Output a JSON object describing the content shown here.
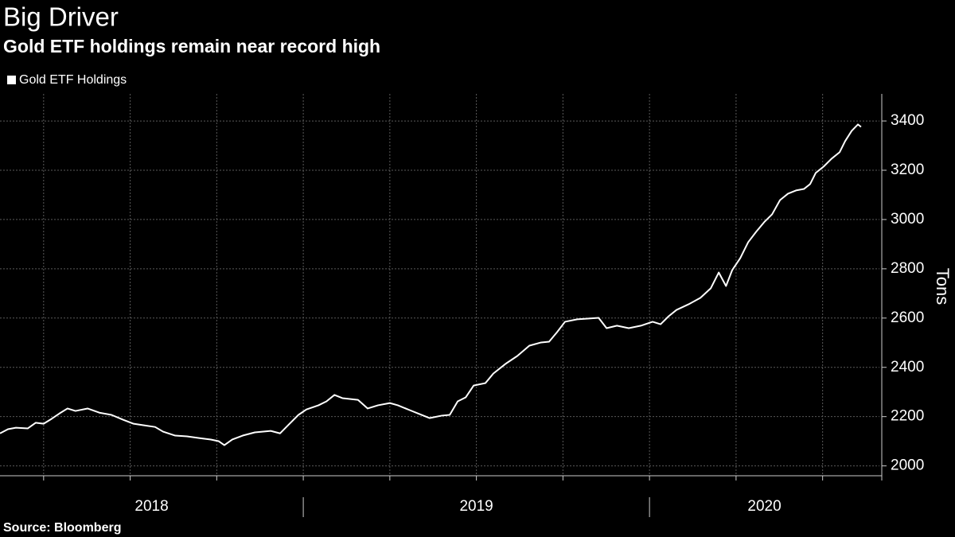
{
  "chart_data": {
    "type": "line",
    "title": "Big Driver",
    "subtitle": "Gold ETF holdings remain near record high",
    "ylabel": "Tons",
    "source": "Source: Bloomberg",
    "xlim": [
      2018.124,
      2020.664
    ],
    "ylim": [
      1960,
      3510
    ],
    "yticks": [
      2000,
      2200,
      2400,
      2600,
      2800,
      3000,
      3200,
      3400
    ],
    "xticks": [
      {
        "value": 2018,
        "label": "2018"
      },
      {
        "value": 2019,
        "label": "2019"
      },
      {
        "value": 2020,
        "label": "2020"
      }
    ],
    "xgrid": [
      2018.25,
      2018.5,
      2018.75,
      2019,
      2019.25,
      2019.5,
      2019.75,
      2020,
      2020.25,
      2020.5
    ],
    "grid": true,
    "legend": "top-left",
    "x": [
      2018.124,
      2018.147,
      2018.17,
      2018.204,
      2018.227,
      2018.25,
      2018.273,
      2018.296,
      2018.319,
      2018.342,
      2018.377,
      2018.411,
      2018.446,
      2018.48,
      2018.51,
      2018.538,
      2018.572,
      2018.595,
      2018.63,
      2018.664,
      2018.699,
      2018.733,
      2018.756,
      2018.772,
      2018.795,
      2018.825,
      2018.86,
      2018.906,
      2018.933,
      2018.956,
      2018.986,
      2019.009,
      2019.044,
      2019.067,
      2019.09,
      2019.113,
      2019.158,
      2019.186,
      2019.216,
      2019.25,
      2019.273,
      2019.308,
      2019.342,
      2019.365,
      2019.4,
      2019.423,
      2019.446,
      2019.469,
      2019.492,
      2019.526,
      2019.549,
      2019.584,
      2019.618,
      2019.653,
      2019.687,
      2019.71,
      2019.733,
      2019.756,
      2019.791,
      2019.825,
      2019.853,
      2019.876,
      2019.906,
      2019.94,
      2019.975,
      2020.009,
      2020.032,
      2020.055,
      2020.078,
      2020.113,
      2020.147,
      2020.177,
      2020.2,
      2020.221,
      2020.239,
      2020.262,
      2020.285,
      2020.308,
      2020.331,
      2020.354,
      2020.377,
      2020.4,
      2020.423,
      2020.446,
      2020.464,
      2020.48,
      2020.503,
      2020.526,
      2020.549,
      2020.565,
      2020.584,
      2020.602,
      2020.611
    ],
    "series": [
      {
        "name": "Gold ETF Holdings",
        "color": "#ffffff",
        "values": [
          2132,
          2149,
          2155,
          2152,
          2175,
          2171,
          2191,
          2213,
          2233,
          2223,
          2233,
          2216,
          2207,
          2187,
          2171,
          2165,
          2158,
          2139,
          2123,
          2120,
          2113,
          2107,
          2100,
          2084,
          2107,
          2123,
          2136,
          2142,
          2132,
          2165,
          2207,
          2229,
          2246,
          2262,
          2288,
          2275,
          2268,
          2233,
          2246,
          2255,
          2246,
          2226,
          2207,
          2194,
          2204,
          2207,
          2262,
          2278,
          2326,
          2336,
          2375,
          2414,
          2446,
          2488,
          2501,
          2504,
          2543,
          2585,
          2595,
          2598,
          2601,
          2559,
          2569,
          2559,
          2569,
          2585,
          2575,
          2607,
          2633,
          2656,
          2682,
          2721,
          2785,
          2730,
          2795,
          2843,
          2908,
          2950,
          2989,
          3021,
          3079,
          3105,
          3118,
          3124,
          3144,
          3189,
          3215,
          3247,
          3273,
          3318,
          3360,
          3386,
          3376
        ]
      }
    ]
  }
}
